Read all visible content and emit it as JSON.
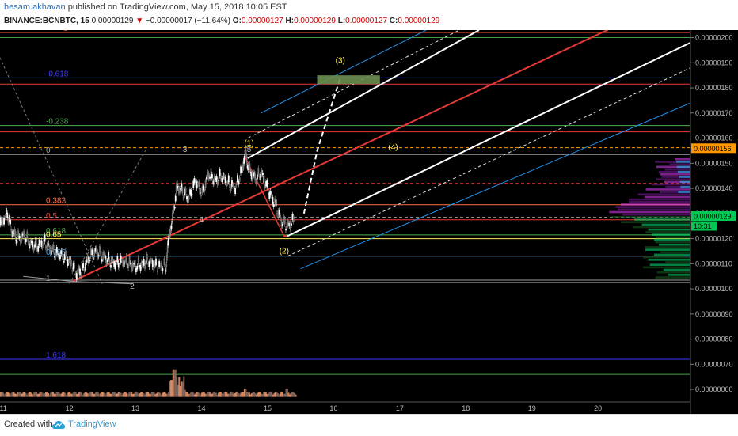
{
  "header": {
    "author": "hesam.akhavan",
    "publish_text": "published on TradingView.com, May 15, 2018 10:05 EST",
    "symbol": "BINANCE:BCNBTC, 15",
    "last": "0.00000129",
    "change": "−0.00000017 (−11.64%)",
    "o_label": "O:",
    "o_value": "0.00000127",
    "h_label": "H:",
    "h_value": "0.00000129",
    "l_label": "L:",
    "l_value": "0.00000127",
    "c_label": "C:",
    "c_value": "0.00000129"
  },
  "footer": {
    "created_with": "Created with",
    "brand": "TradingView"
  },
  "chart_data": {
    "type": "line",
    "x_ticks": [
      "11",
      "12",
      "13",
      "14",
      "15",
      "16",
      "17",
      "18",
      "19",
      "20"
    ],
    "y_ticks": [
      "0.00000200",
      "0.00000190",
      "0.00000180",
      "0.00000170",
      "0.00000160",
      "0.00000150",
      "0.00000140",
      "0.00000130",
      "0.00000120",
      "0.00000110",
      "0.00000100",
      "0.00000090",
      "0.00000080",
      "0.00000070",
      "0.00000060"
    ],
    "ylim": [
      5.5e-07,
      2.03e-06
    ],
    "xlim": [
      10.95,
      21.4
    ],
    "price_badges": [
      {
        "label": "0.00000156",
        "value": 1.56e-06,
        "color": "#ff9800",
        "text_color": "#000000"
      },
      {
        "label": "0.00000129",
        "value": 1.29e-06,
        "color": "#00c853",
        "text_color": "#000000"
      },
      {
        "label": "10:31",
        "value": 1.26e-06,
        "color": "#00c853",
        "text_color": "#000000"
      }
    ],
    "fib_levels": [
      {
        "label": "1",
        "value": 2.02e-06,
        "color": "#e53935",
        "dashed": false
      },
      {
        "label": "-0.618",
        "value": 1.84e-06,
        "color": "#3d3dff",
        "dashed": false
      },
      {
        "label": "-0.238",
        "value": 1.65e-06,
        "color": "#4caf50",
        "dashed": false
      },
      {
        "label": "0",
        "value": 1.535e-06,
        "color": "#9e9e9e",
        "dashed": false
      },
      {
        "label": "0.382",
        "value": 1.335e-06,
        "color": "#ff7043",
        "dashed": false
      },
      {
        "label": "0.5",
        "value": 1.275e-06,
        "color": "#e53935",
        "dashed": false
      },
      {
        "label": "0.618",
        "value": 1.215e-06,
        "color": "#4caf50",
        "dashed": false
      },
      {
        "label": "0.65",
        "value": 1.2e-06,
        "color": "#ffee58",
        "dashed": false
      },
      {
        "label": "0.786",
        "value": 1.13e-06,
        "color": "#42a5f5",
        "dashed": false
      },
      {
        "label": "1",
        "value": 1.025e-06,
        "color": "#9e9e9e",
        "dashed": false
      },
      {
        "label": "1.618",
        "value": 7.2e-07,
        "color": "#3d3dff",
        "dashed": false
      }
    ],
    "extra_lines": [
      {
        "value": 2e-06,
        "color": "#43a047",
        "dashed": false
      },
      {
        "value": 1.815e-06,
        "color": "#e53935",
        "dashed": false
      },
      {
        "value": 1.625e-06,
        "color": "#e53935",
        "dashed": false
      },
      {
        "value": 1.562e-06,
        "color": "#ff9800",
        "dashed": true
      },
      {
        "value": 1.42e-06,
        "color": "#e53935",
        "dashed": true
      },
      {
        "value": 1.285e-06,
        "color": "#9e9e9e",
        "dashed": true
      },
      {
        "value": 1.035e-06,
        "color": "#9e9e9e",
        "dashed": false
      },
      {
        "value": 6.6e-07,
        "color": "#43a047",
        "dashed": false
      }
    ],
    "price_series": [
      [
        10.95,
        1.25
      ],
      [
        11.05,
        1.29
      ],
      [
        11.12,
        1.22
      ],
      [
        11.2,
        1.19
      ],
      [
        11.3,
        1.2
      ],
      [
        11.4,
        1.17
      ],
      [
        11.5,
        1.16
      ],
      [
        11.6,
        1.18
      ],
      [
        11.7,
        1.15
      ],
      [
        11.8,
        1.13
      ],
      [
        11.9,
        1.12
      ],
      [
        12.0,
        1.1
      ],
      [
        12.1,
        1.05
      ],
      [
        12.2,
        1.07
      ],
      [
        12.3,
        1.12
      ],
      [
        12.4,
        1.14
      ],
      [
        12.5,
        1.12
      ],
      [
        12.6,
        1.1
      ],
      [
        12.7,
        1.09
      ],
      [
        12.8,
        1.1
      ],
      [
        12.9,
        1.09
      ],
      [
        13.0,
        1.08
      ],
      [
        13.1,
        1.09
      ],
      [
        13.2,
        1.1
      ],
      [
        13.3,
        1.08
      ],
      [
        13.45,
        1.08
      ],
      [
        13.5,
        1.2
      ],
      [
        13.55,
        1.27
      ],
      [
        13.62,
        1.4
      ],
      [
        13.7,
        1.38
      ],
      [
        13.8,
        1.35
      ],
      [
        13.9,
        1.42
      ],
      [
        14.0,
        1.37
      ],
      [
        14.1,
        1.45
      ],
      [
        14.2,
        1.42
      ],
      [
        14.3,
        1.44
      ],
      [
        14.4,
        1.41
      ],
      [
        14.5,
        1.39
      ],
      [
        14.6,
        1.46
      ],
      [
        14.65,
        1.53
      ],
      [
        14.72,
        1.46
      ],
      [
        14.8,
        1.43
      ],
      [
        14.9,
        1.45
      ],
      [
        15.0,
        1.38
      ],
      [
        15.1,
        1.33
      ],
      [
        15.2,
        1.26
      ],
      [
        15.3,
        1.24
      ],
      [
        15.4,
        1.27
      ]
    ],
    "channel": {
      "middle": {
        "from": [
          12.05,
          1.03
        ],
        "to": [
          20.3,
          2.05
        ],
        "color": "#e53935"
      },
      "upper": {
        "from": [
          14.7,
          1.52
        ],
        "to": [
          18.2,
          2.03
        ],
        "color": "#ffffff"
      },
      "lower": {
        "from": [
          15.3,
          1.21
        ],
        "to": [
          21.4,
          1.98
        ],
        "color": "#ffffff"
      },
      "outer_upper": {
        "from": [
          14.7,
          1.6
        ],
        "to": [
          17.9,
          2.03
        ],
        "color": "#dddddd"
      },
      "outer_lower": {
        "from": [
          15.3,
          1.13
        ],
        "to": [
          21.4,
          1.88
        ],
        "color": "#dddddd"
      },
      "outer_upper2": {
        "from": [
          14.9,
          1.7
        ],
        "to": [
          17.4,
          2.03
        ],
        "color": "#2196f3"
      },
      "outer_lower2": {
        "from": [
          15.5,
          1.08
        ],
        "to": [
          21.4,
          1.74
        ],
        "color": "#2196f3"
      }
    },
    "wave_labels": [
      {
        "label": "(1)",
        "x": 14.72,
        "y": 1.57,
        "color": "#ffee58"
      },
      {
        "label": "(2)",
        "x": 15.25,
        "y": 1.14,
        "color": "#ffee58"
      },
      {
        "label": "(3)",
        "x": 16.1,
        "y": 1.9,
        "color": "#ffee58"
      },
      {
        "label": "(4)",
        "x": 16.9,
        "y": 1.555,
        "color": "#ffee58"
      },
      {
        "label": "5",
        "x": 14.72,
        "y": 1.545,
        "color": "#bdbdbd"
      },
      {
        "label": "3",
        "x": 13.75,
        "y": 1.545,
        "color": "#bdbdbd"
      },
      {
        "label": "4",
        "x": 14.0,
        "y": 1.265,
        "color": "#bdbdbd"
      },
      {
        "label": "2",
        "x": 12.95,
        "y": 1.0,
        "color": "#bdbdbd"
      }
    ],
    "target_box": {
      "x1": 15.75,
      "x2": 16.7,
      "y1": 1.815,
      "y2": 1.85,
      "color": "#6b8e4e"
    },
    "volume": {
      "base": 0.57,
      "max_height": 0.11
    }
  }
}
